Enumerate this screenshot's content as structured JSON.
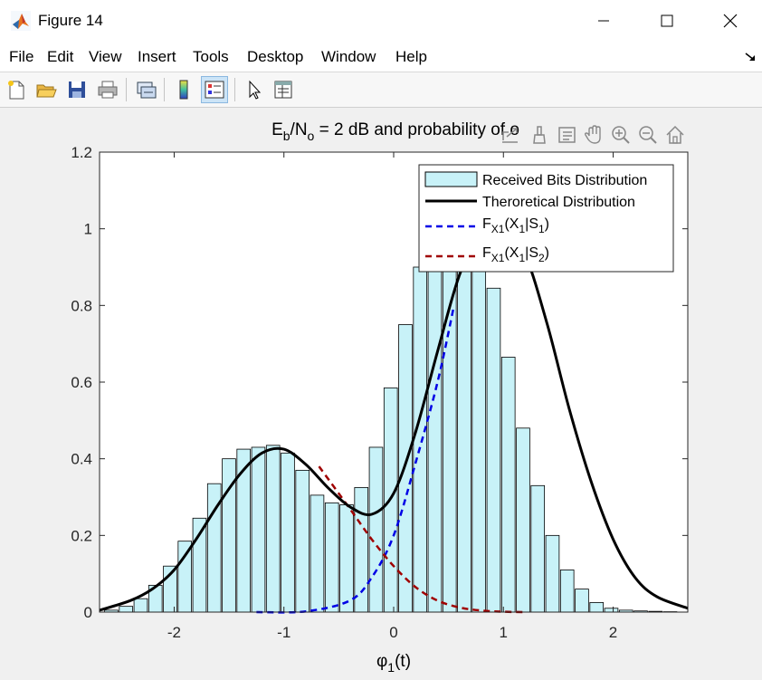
{
  "window": {
    "title": "Figure 14",
    "minimize_icon": "minimize-icon",
    "maximize_icon": "maximize-icon",
    "close_icon": "close-icon"
  },
  "menubar": {
    "items": [
      "File",
      "Edit",
      "View",
      "Insert",
      "Tools",
      "Desktop",
      "Window",
      "Help"
    ]
  },
  "toolbar": {
    "buttons": [
      "new-figure-icon",
      "open-file-icon",
      "save-icon",
      "print-icon",
      "link-plot-icon",
      "insert-colorbar-icon",
      "insert-legend-icon",
      "edit-plot-icon",
      "property-inspector-icon"
    ]
  },
  "axes_toolbar": {
    "buttons": [
      "export-icon",
      "brush-icon",
      "data-tips-icon",
      "pan-icon",
      "zoom-in-icon",
      "zoom-out-icon",
      "home-icon"
    ]
  },
  "chart_data": {
    "type": "bar",
    "title_parts": {
      "e": "E",
      "b": "b",
      "slash_n": "/N",
      "o": "o",
      "rest": " = 2 dB and probability of o"
    },
    "xlabel_parts": {
      "phi": "φ",
      "sub": "1",
      "tail": "(t)"
    },
    "xlim": [
      -2.68,
      2.68
    ],
    "ylim": [
      0,
      1.2
    ],
    "xticks": [
      -2,
      -1,
      0,
      1,
      2
    ],
    "xtick_labels": [
      "-2",
      "-1",
      "0",
      "1",
      "2"
    ],
    "yticks": [
      0,
      0.2,
      0.4,
      0.6,
      0.8,
      1,
      1.2
    ],
    "ytick_labels": [
      "0",
      "0.2",
      "0.4",
      "0.6",
      "0.8",
      "1",
      "1.2"
    ],
    "legend_position": "top-right",
    "colors": {
      "bar_fill": "#c8f2f8",
      "bar_edge": "#000000",
      "theory": "#000000",
      "s1": "#0000e6",
      "s2": "#a00000"
    },
    "bar_width": 0.122,
    "histogram": {
      "name": "Received Bits Distribution",
      "centers": [
        -2.573,
        -2.439,
        -2.305,
        -2.171,
        -2.037,
        -1.903,
        -1.769,
        -1.635,
        -1.501,
        -1.367,
        -1.233,
        -1.099,
        -0.965,
        -0.831,
        -0.697,
        -0.563,
        -0.429,
        -0.295,
        -0.161,
        -0.027,
        0.107,
        0.241,
        0.375,
        0.509,
        0.643,
        0.777,
        0.911,
        1.045,
        1.179,
        1.313,
        1.447,
        1.581,
        1.715,
        1.849,
        1.983,
        2.117,
        2.251,
        2.385,
        2.519
      ],
      "values": [
        0.005,
        0.015,
        0.035,
        0.07,
        0.12,
        0.185,
        0.245,
        0.335,
        0.4,
        0.425,
        0.43,
        0.435,
        0.415,
        0.37,
        0.305,
        0.285,
        0.28,
        0.325,
        0.43,
        0.585,
        0.75,
        0.9,
        0.96,
        0.97,
        0.965,
        0.95,
        0.845,
        0.665,
        0.48,
        0.33,
        0.2,
        0.11,
        0.06,
        0.025,
        0.01,
        0.005,
        0.003,
        0.002,
        0.001
      ]
    },
    "theory": {
      "name": "Theroretical Distribution",
      "x": [
        -2.68,
        -2.4,
        -2.2,
        -2.0,
        -1.8,
        -1.6,
        -1.4,
        -1.2,
        -1.0,
        -0.8,
        -0.6,
        -0.4,
        -0.2,
        0.0,
        0.2,
        0.4,
        0.6,
        0.8,
        1.0,
        1.2,
        1.4,
        1.6,
        1.8,
        2.0,
        2.2,
        2.4,
        2.68
      ],
      "y": [
        0.005,
        0.03,
        0.06,
        0.11,
        0.19,
        0.28,
        0.36,
        0.415,
        0.425,
        0.385,
        0.325,
        0.275,
        0.255,
        0.31,
        0.47,
        0.68,
        0.88,
        0.99,
        1.0,
        0.93,
        0.75,
        0.53,
        0.34,
        0.19,
        0.09,
        0.04,
        0.01
      ]
    },
    "s1": {
      "name_parts": {
        "f": "F",
        "sub1": "X1",
        "mid": "(X",
        "sub2": "1",
        "bar": "|S",
        "sub3": "1",
        "close": ")"
      },
      "x": [
        -1.25,
        -0.8,
        -0.4,
        -0.2,
        0.0,
        0.2,
        0.4,
        0.55
      ],
      "y": [
        0,
        0.002,
        0.03,
        0.09,
        0.2,
        0.39,
        0.6,
        0.8
      ]
    },
    "s2": {
      "name_parts": {
        "f": "F",
        "sub1": "X1",
        "mid": "(X",
        "sub2": "1",
        "bar": "|S",
        "sub3": "2",
        "close": ")"
      },
      "x": [
        -0.68,
        -0.4,
        -0.2,
        0.0,
        0.2,
        0.4,
        0.6,
        0.8,
        1.0,
        1.2
      ],
      "y": [
        0.38,
        0.27,
        0.19,
        0.12,
        0.065,
        0.03,
        0.012,
        0.004,
        0.001,
        0
      ]
    }
  }
}
